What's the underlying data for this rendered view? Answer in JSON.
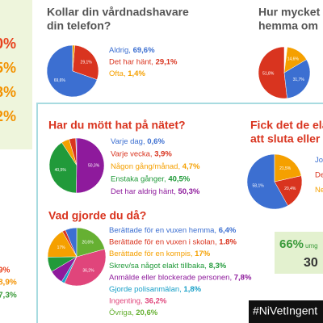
{
  "left_figures": [
    {
      "text": "0%",
      "color": "#e8401c"
    },
    {
      "text": "5%",
      "color": "#f39200"
    },
    {
      "text": "8%",
      "color": "#f39200"
    },
    {
      "text": "2%",
      "color": "#f39200"
    },
    {
      "text": "9%",
      "color": "#e8401c"
    },
    {
      "text": "8,9%",
      "color": "#f39200"
    },
    {
      "text": "7,3%",
      "color": "#3a9a3a"
    }
  ],
  "panels": [
    {
      "title": [
        "Kollar din vårdnadshavare",
        "din telefon?"
      ],
      "title_color": "#555555",
      "items": [
        {
          "label": "Aldrig,",
          "value": 69.6,
          "value_label": "69,6%",
          "color": "#3c6fd1"
        },
        {
          "label": "Det har hänt,",
          "value": 29.1,
          "value_label": "29,1%",
          "color": "#d9341f"
        },
        {
          "label": "Ofta,",
          "value": 1.4,
          "value_label": "1,4%",
          "color": "#f5a000"
        }
      ]
    },
    {
      "title": [
        "Hur mycket",
        "hemma om"
      ],
      "title_color": "#555555",
      "items": [
        {
          "value": 51.8,
          "value_label": "51,8%",
          "color": "#d9341f"
        },
        {
          "value": 31.7,
          "value_label": "31,7%",
          "color": "#3c6fd1"
        },
        {
          "value": 14.6,
          "value_label": "14,6%",
          "color": "#f5a000"
        }
      ]
    },
    {
      "title": [
        "Har du mött hat på nätet?"
      ],
      "title_color": "#d9341f",
      "items": [
        {
          "label": "Varje dag,",
          "value": 0.6,
          "value_label": "0,6%",
          "color": "#3c6fd1"
        },
        {
          "label": "Varje vecka,",
          "value": 3.9,
          "value_label": "3,9%",
          "color": "#d9341f"
        },
        {
          "label": "Någon gång/månad,",
          "value": 4.7,
          "value_label": "4,7%",
          "color": "#f5a000"
        },
        {
          "label": "Enstaka gånger,",
          "value": 40.5,
          "value_label": "40,5%",
          "color": "#219a3a"
        },
        {
          "label": "Det har aldrig hänt,",
          "value": 50.3,
          "value_label": "50,3%",
          "color": "#8e1a9c"
        }
      ]
    },
    {
      "title": [
        "Fick det de ela",
        "att sluta eller"
      ],
      "title_color": "#d9341f",
      "items": [
        {
          "label": "Jo",
          "value": 58.1,
          "value_label": "58,1%",
          "color": "#3c6fd1"
        },
        {
          "label": "De",
          "value": 20.4,
          "value_label": "20,4%",
          "color": "#d9341f"
        },
        {
          "label": "Ne",
          "value": 21.5,
          "value_label": "21,5%",
          "color": "#f5a000"
        }
      ]
    },
    {
      "title": [
        "Vad gjorde du då?"
      ],
      "title_color": "#d9341f",
      "items": [
        {
          "label": "Berättade för en vuxen hemma,",
          "value": 6.4,
          "value_label": "6,4%",
          "color": "#3c6fd1"
        },
        {
          "label": "Berättade för en vuxen i skolan,",
          "value": 1.8,
          "value_label": "1.8%",
          "color": "#d9341f"
        },
        {
          "label": "Berättade för en kompis,",
          "value": 17,
          "value_label": "17%",
          "color": "#f5a000"
        },
        {
          "label": "Skrev/sa något elakt tillbaka,",
          "value": 8.3,
          "value_label": "8,3%",
          "color": "#219a3a"
        },
        {
          "label": "Anmälde eller blockerade personen,",
          "value": 7.8,
          "value_label": "7,8%",
          "color": "#8e1a9c"
        },
        {
          "label": "Gjorde polisanmälan,",
          "value": 1.8,
          "value_label": "1,8%",
          "color": "#1aa0c8"
        },
        {
          "label": "Ingenting,",
          "value": 36.2,
          "value_label": "36,2%",
          "color": "#e0457b"
        },
        {
          "label": "Övriga,",
          "value": 20.6,
          "value_label": "20,6%",
          "color": "#66b032"
        }
      ]
    }
  ],
  "stat_box": {
    "big": "66%",
    "small": "umg",
    "second": "30"
  },
  "hashtag": "#NiVetIngent"
}
